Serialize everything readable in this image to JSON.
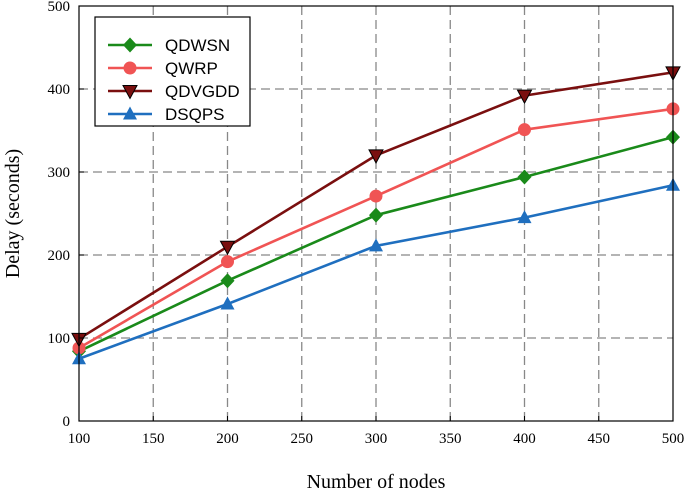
{
  "chart_data": {
    "type": "line",
    "xlabel": "Number of nodes",
    "ylabel": "Delay (seconds)",
    "xlim": [
      100,
      500
    ],
    "ylim": [
      0,
      500
    ],
    "x_ticks": [
      "100",
      "150",
      "200",
      "250",
      "300",
      "350",
      "400",
      "450",
      "500"
    ],
    "y_ticks": [
      "0",
      "100",
      "200",
      "300",
      "400",
      "500"
    ],
    "grid": true,
    "legend_position": "top-left",
    "x": [
      100,
      200,
      300,
      400,
      500
    ],
    "series": [
      {
        "name": "QDWSN",
        "values": [
          84,
          169,
          248,
          294,
          342
        ],
        "color": "#1a8a1a",
        "marker": "diamond"
      },
      {
        "name": "QWRP",
        "values": [
          88,
          192,
          271,
          351,
          376
        ],
        "color": "#f05454",
        "marker": "circle"
      },
      {
        "name": "QDVGDD",
        "values": [
          99,
          210,
          320,
          392,
          420
        ],
        "color": "#7a0f0f",
        "marker": "triangle-down"
      },
      {
        "name": "DSQPS",
        "values": [
          75,
          141,
          211,
          245,
          284
        ],
        "color": "#1f6fbf",
        "marker": "triangle-up"
      }
    ]
  }
}
